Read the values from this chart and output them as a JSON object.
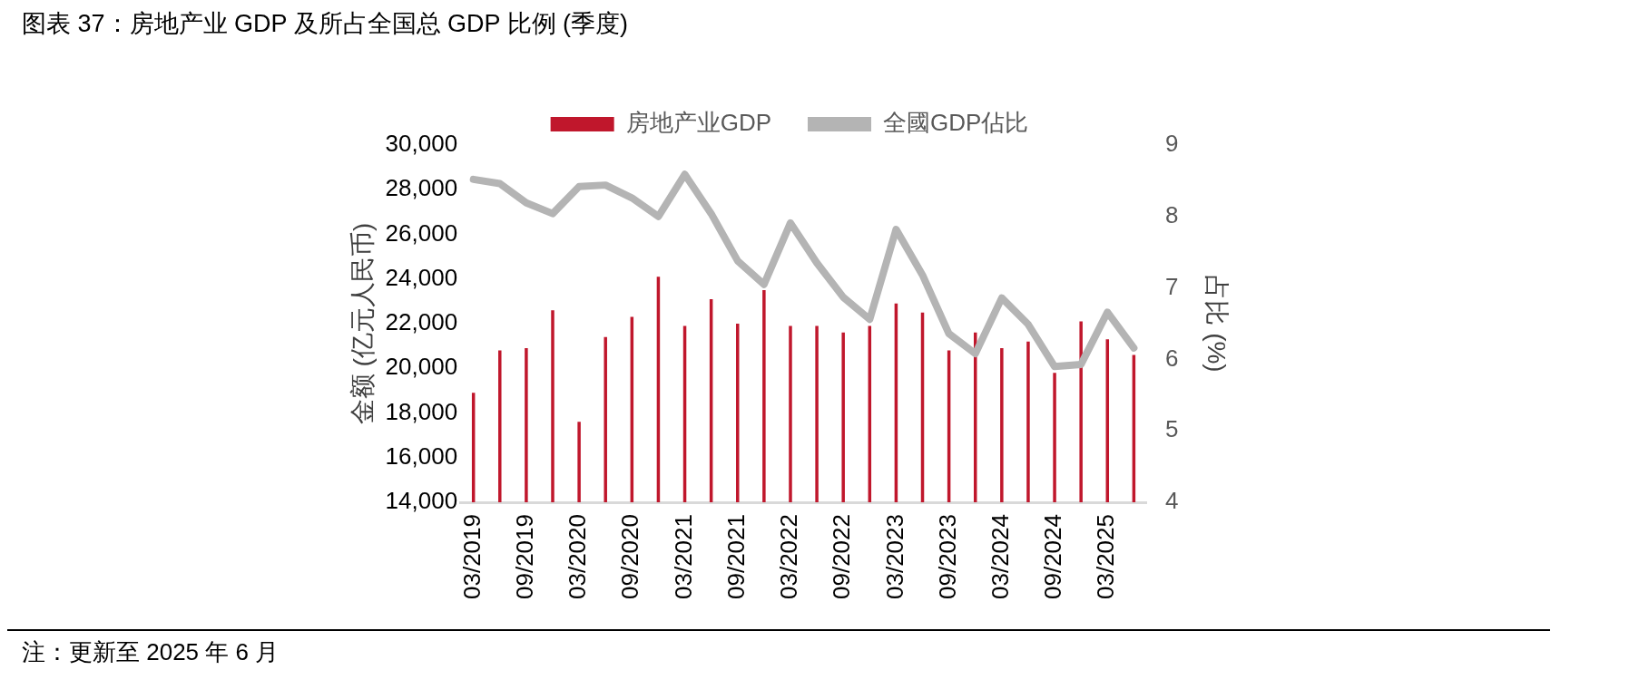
{
  "chart_data": {
    "type": "bar",
    "title": "图表 37：房地产业 GDP 及所占全国总 GDP 比例 (季度)",
    "ylabel": "金额 (亿元人民币)",
    "y2label": "占比 (%)",
    "annotations": [
      "注：更新至 2025 年 6 月"
    ],
    "categories": [
      "03/2019",
      null,
      "09/2019",
      null,
      "03/2020",
      null,
      "09/2020",
      null,
      "03/2021",
      null,
      "09/2021",
      null,
      "03/2022",
      null,
      "09/2022",
      null,
      "03/2023",
      null,
      "09/2023",
      null,
      "03/2024",
      null,
      "09/2024",
      null,
      "03/2025",
      null
    ],
    "series": [
      {
        "name": "房地产业GDP",
        "color": "#c0172c",
        "values": [
          18900,
          20800,
          20900,
          22600,
          17600,
          21400,
          22300,
          24100,
          21900,
          23100,
          22000,
          23500,
          21900,
          21900,
          21600,
          21900,
          22900,
          22500,
          20800,
          21600,
          20900,
          21200,
          19800,
          22100,
          21300,
          20600
        ]
      },
      {
        "name": "全國GDP佔比",
        "type": "line",
        "axis": "y2",
        "color": "#b4b4b4",
        "values": [
          8.52,
          8.46,
          8.19,
          8.04,
          8.42,
          8.44,
          8.26,
          8.0,
          8.59,
          8.04,
          7.38,
          7.05,
          7.91,
          7.35,
          6.87,
          6.56,
          7.82,
          7.18,
          6.36,
          6.08,
          6.86,
          6.49,
          5.9,
          5.93,
          6.66,
          6.16
        ]
      }
    ],
    "ylim": [
      14000,
      30000
    ],
    "yticks": [
      {
        "value": 14000,
        "label": "14,000"
      },
      {
        "value": 16000,
        "label": "16,000"
      },
      {
        "value": 18000,
        "label": "18,000"
      },
      {
        "value": 20000,
        "label": "20,000"
      },
      {
        "value": 22000,
        "label": "22,000"
      },
      {
        "value": 24000,
        "label": "24,000"
      },
      {
        "value": 26000,
        "label": "26,000"
      },
      {
        "value": 28000,
        "label": "28,000"
      },
      {
        "value": 30000,
        "label": "30,000"
      }
    ],
    "y2lim": [
      4,
      9
    ],
    "y2ticks": [
      4,
      5,
      6,
      7,
      8,
      9
    ],
    "grid": false,
    "legend": "top",
    "marker": "none",
    "line_style": "solid"
  }
}
